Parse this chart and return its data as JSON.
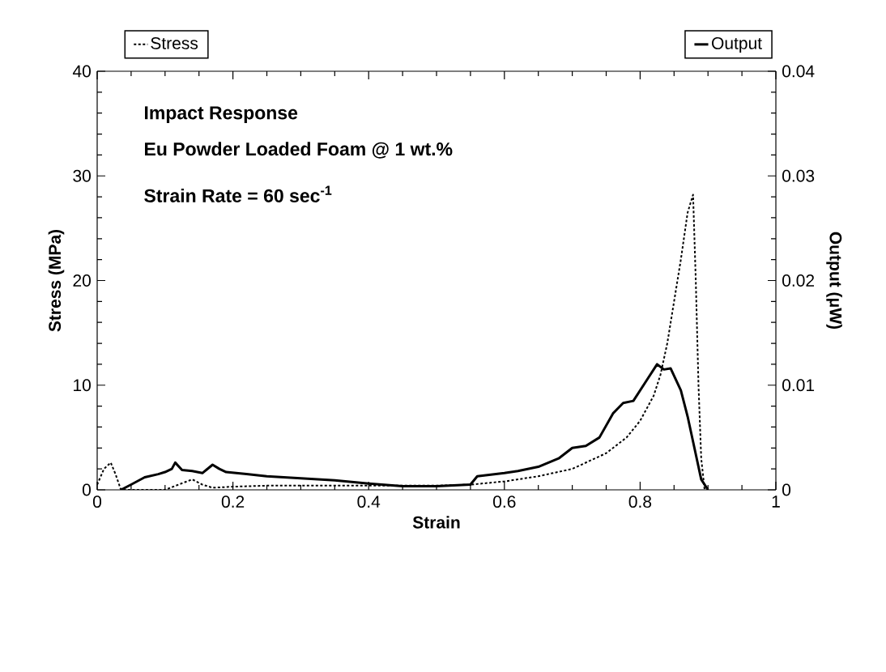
{
  "chart_data": {
    "type": "line",
    "annotations": [
      "Impact Response",
      "Eu Powder Loaded Foam  @ 1 wt.%",
      "Strain Rate = 60 sec$^{-1}$"
    ],
    "xlabel": "Strain",
    "ylabel": "Stress (MPa)",
    "y2label": "Output (μW)",
    "xlim": [
      0,
      1
    ],
    "xticks": [
      0,
      0.2,
      0.4,
      0.6,
      0.8,
      1
    ],
    "ylim": [
      0,
      40
    ],
    "yticks": [
      0,
      10,
      20,
      30,
      40
    ],
    "y2lim": [
      0,
      0.04
    ],
    "y2ticks": [
      0,
      0.01,
      0.02,
      0.03,
      0.04
    ],
    "legend": "top",
    "series": [
      {
        "name": "Stress",
        "color": "#000000",
        "line_style": "dotted",
        "x": [
          0,
          0.01,
          0.02,
          0.027,
          0.035,
          0.05,
          0.1,
          0.12,
          0.14,
          0.155,
          0.17,
          0.2,
          0.25,
          0.3,
          0.35,
          0.4,
          0.45,
          0.5,
          0.55,
          0.6,
          0.65,
          0.7,
          0.75,
          0.78,
          0.8,
          0.82,
          0.83,
          0.84,
          0.85,
          0.86,
          0.87,
          0.878,
          0.882,
          0.886,
          0.89,
          0.895
        ],
        "values": [
          0.5,
          2.0,
          2.6,
          1.5,
          0,
          0,
          0,
          0.5,
          1.0,
          0.5,
          0.2,
          0.3,
          0.4,
          0.4,
          0.4,
          0.4,
          0.4,
          0.4,
          0.5,
          0.8,
          1.3,
          2.0,
          3.5,
          5.0,
          6.6,
          9.0,
          11.0,
          14.0,
          18.0,
          22.0,
          26.5,
          28.2,
          20.0,
          10.0,
          3.0,
          0
        ]
      },
      {
        "name": "Output",
        "color": "#000000",
        "line_style": "solid",
        "axis": "y2",
        "x": [
          0.035,
          0.05,
          0.07,
          0.09,
          0.1,
          0.11,
          0.115,
          0.125,
          0.14,
          0.155,
          0.17,
          0.18,
          0.19,
          0.22,
          0.25,
          0.3,
          0.35,
          0.4,
          0.45,
          0.5,
          0.55,
          0.56,
          0.6,
          0.62,
          0.65,
          0.68,
          0.7,
          0.72,
          0.74,
          0.76,
          0.775,
          0.79,
          0.81,
          0.825,
          0.835,
          0.845,
          0.86,
          0.87,
          0.88,
          0.89,
          0.9
        ],
        "values": [
          0,
          0.0005,
          0.0012,
          0.0015,
          0.0017,
          0.002,
          0.0026,
          0.0019,
          0.0018,
          0.0016,
          0.0024,
          0.002,
          0.0017,
          0.0015,
          0.0013,
          0.0011,
          0.0009,
          0.0006,
          0.00035,
          0.00035,
          0.0005,
          0.0013,
          0.0016,
          0.0018,
          0.0022,
          0.003,
          0.004,
          0.0042,
          0.005,
          0.0073,
          0.0083,
          0.0085,
          0.0105,
          0.012,
          0.0115,
          0.0116,
          0.0095,
          0.007,
          0.004,
          0.001,
          0
        ]
      }
    ]
  }
}
